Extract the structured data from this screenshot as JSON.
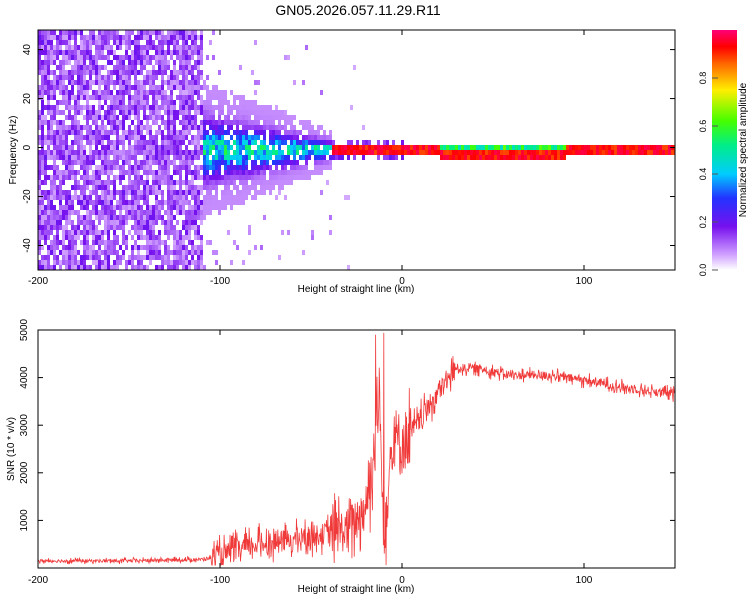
{
  "figure_title": "GN05.2026.057.11.29.R11",
  "chart_data": [
    {
      "type": "heatmap",
      "xlabel": "Height of straight line (km)",
      "ylabel": "Frequency (Hz)",
      "xlim": [
        -200,
        150
      ],
      "ylim": [
        -50,
        48
      ],
      "xticks": [
        -200,
        -100,
        0,
        100
      ],
      "xtick_labels": [
        "-200",
        "-100",
        "0",
        "100"
      ],
      "yticks": [
        -40,
        -20,
        0,
        20,
        40
      ],
      "ytick_labels": [
        "-40",
        "-20",
        "0",
        "20",
        "40"
      ],
      "colorbar": {
        "label": "Normalized spectral amplitude",
        "range": [
          0,
          1
        ],
        "ticks": [
          0,
          0.2,
          0.4,
          0.6,
          0.8
        ],
        "tick_labels": [
          "0.0",
          "0.2",
          "0.4",
          "0.6",
          "0.8"
        ],
        "colormap": "rainbow (white-violet-blue-cyan-green-yellow-red-magenta)"
      },
      "regions": [
        {
          "x_range": [
            -200,
            -110
          ],
          "y_range": [
            -50,
            48
          ],
          "amplitude": 0.15,
          "description": "broadband noise"
        },
        {
          "x_range": [
            -110,
            -40
          ],
          "y_range": [
            -25,
            28
          ],
          "amplitude": 0.3,
          "description": "spreading signal"
        },
        {
          "x_range": [
            -40,
            150
          ],
          "y_range": [
            -2,
            2
          ],
          "amplitude": 0.95,
          "description": "narrow carrier line near 0 Hz"
        }
      ]
    },
    {
      "type": "line",
      "xlabel": "Height of straight line (km)",
      "ylabel": "SNR (10 * v/v)",
      "xlim": [
        -200,
        150
      ],
      "ylim": [
        0,
        5000
      ],
      "xticks": [
        -200,
        -100,
        0,
        100
      ],
      "xtick_labels": [
        "-200",
        "-100",
        "0",
        "100"
      ],
      "yticks": [
        1000,
        2000,
        3000,
        4000,
        5000
      ],
      "ytick_labels": [
        "1000",
        "2000",
        "3000",
        "4000",
        "5000"
      ],
      "series": [
        {
          "name": "SNR",
          "color": "#f03a3a",
          "x": [
            -200,
            -150,
            -110,
            -100,
            -80,
            -60,
            -45,
            -30,
            -20,
            -15,
            -12,
            -10,
            -5,
            0,
            10,
            20,
            30,
            40,
            60,
            80,
            100,
            120,
            150
          ],
          "y": [
            150,
            150,
            180,
            250,
            500,
            600,
            700,
            800,
            1300,
            2500,
            3500,
            700,
            2800,
            2600,
            3100,
            3700,
            4200,
            4200,
            4050,
            4050,
            3950,
            3800,
            3650
          ]
        }
      ]
    }
  ]
}
